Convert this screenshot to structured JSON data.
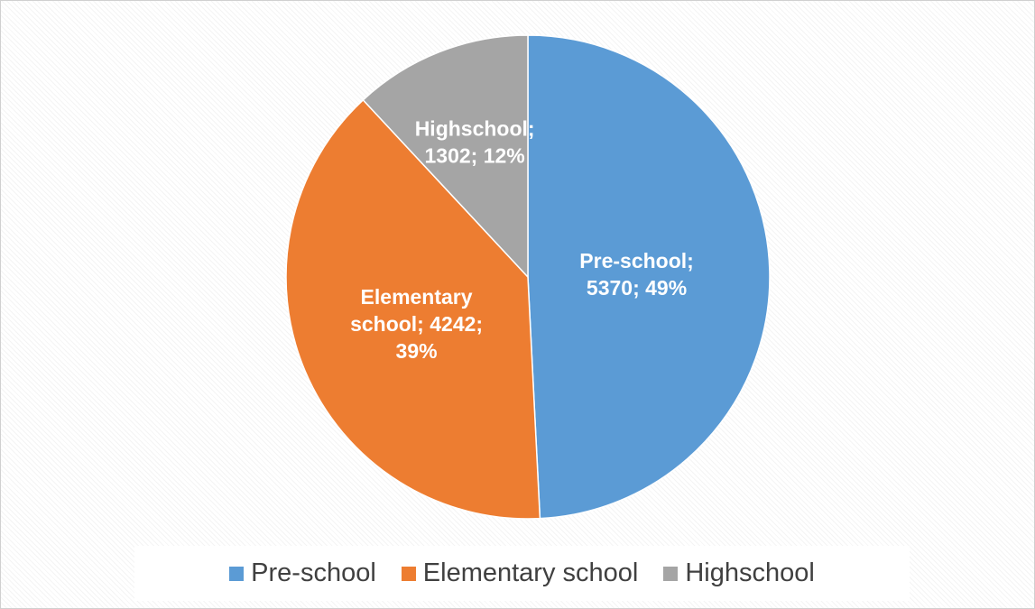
{
  "chart_data": {
    "type": "pie",
    "title": "",
    "legend_position": "bottom",
    "slices": [
      {
        "name": "Pre-school",
        "value": 5370,
        "percent": 49,
        "color": "#5b9bd5",
        "label_lines": [
          "Pre-school;",
          "5370; 49%"
        ]
      },
      {
        "name": "Elementary school",
        "value": 4242,
        "percent": 39,
        "color": "#ed7d31",
        "label_lines": [
          "Elementary",
          "school; 4242;",
          "39%"
        ]
      },
      {
        "name": "Highschool",
        "value": 1302,
        "percent": 12,
        "color": "#a5a5a5",
        "label_lines": [
          "Highschool;",
          "1302; 12%"
        ]
      }
    ],
    "legend": [
      {
        "name": "Pre-school",
        "color": "#5b9bd5"
      },
      {
        "name": "Elementary school",
        "color": "#ed7d31"
      },
      {
        "name": "Highschool",
        "color": "#a5a5a5"
      }
    ]
  }
}
